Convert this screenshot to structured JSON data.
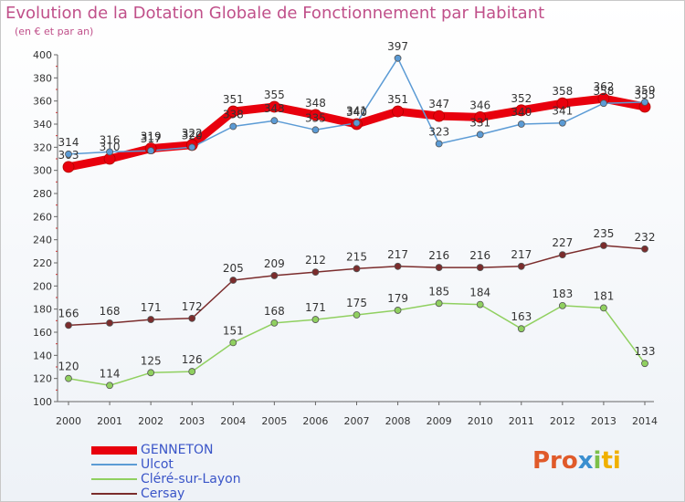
{
  "header": {
    "title": "Evolution de la Dotation Globale de Fonctionnement par Habitant",
    "subtitle": "(en € et par an)"
  },
  "logo": {
    "parts": [
      "Pro",
      "x",
      "i",
      "ti"
    ]
  },
  "chart_data": {
    "type": "line",
    "title": "Evolution de la Dotation Globale de Fonctionnement par Habitant",
    "subtitle": "(en € et par an)",
    "xlabel": "",
    "ylabel": "",
    "categories": [
      "2000",
      "2001",
      "2002",
      "2003",
      "2004",
      "2005",
      "2006",
      "2007",
      "2008",
      "2009",
      "2010",
      "2011",
      "2012",
      "2013",
      "2014"
    ],
    "ylim": [
      100,
      400
    ],
    "yticks": [
      100,
      120,
      140,
      160,
      180,
      200,
      220,
      240,
      260,
      280,
      300,
      320,
      340,
      360,
      380,
      400
    ],
    "grid": false,
    "legend_position": "bottom-left",
    "series": [
      {
        "name": "GENNETON",
        "color": "#e8000d",
        "values": [
          303,
          310,
          319,
          322,
          351,
          355,
          348,
          340,
          351,
          347,
          346,
          352,
          358,
          362,
          355
        ]
      },
      {
        "name": "Ulcot",
        "color": "#5b9bd5",
        "values": [
          314,
          316,
          317,
          320,
          338,
          343,
          335,
          341,
          397,
          323,
          331,
          340,
          341,
          358,
          359
        ]
      },
      {
        "name": "Cléré-sur-Layon",
        "color": "#90d060",
        "values": [
          120,
          114,
          125,
          126,
          151,
          168,
          171,
          175,
          179,
          185,
          184,
          163,
          183,
          181,
          133
        ]
      },
      {
        "name": "Cersay",
        "color": "#7b2c2c",
        "values": [
          166,
          168,
          171,
          172,
          205,
          209,
          212,
          215,
          217,
          216,
          216,
          217,
          227,
          235,
          232
        ]
      }
    ]
  }
}
